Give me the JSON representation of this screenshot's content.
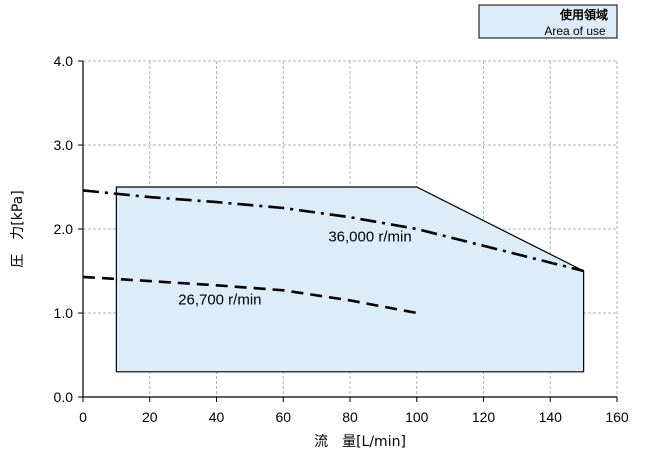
{
  "chart_data": {
    "type": "line",
    "xlabel": "流　量[L/min]",
    "ylabel": "圧　力[kPa]",
    "xlim": [
      0,
      160
    ],
    "ylim": [
      0.0,
      4.0
    ],
    "x_ticks": [
      0,
      20,
      40,
      60,
      80,
      100,
      120,
      140,
      160
    ],
    "y_ticks": [
      0.0,
      1.0,
      2.0,
      3.0,
      4.0
    ],
    "x_tick_labels": [
      "0",
      "20",
      "40",
      "60",
      "80",
      "100",
      "120",
      "140",
      "160"
    ],
    "y_tick_labels": [
      "0.0",
      "1.0",
      "2.0",
      "3.0",
      "4.0"
    ],
    "grid": true,
    "legend": {
      "placement": "top-right",
      "title": "使用領域",
      "subtitle": "Area of use",
      "swatch_color": "#dcecf8"
    },
    "area_of_use": {
      "fill": "#dcecf8",
      "points": [
        [
          10,
          0.3
        ],
        [
          10,
          2.5
        ],
        [
          100,
          2.5
        ],
        [
          150,
          1.5
        ],
        [
          150,
          0.3
        ]
      ]
    },
    "series": [
      {
        "name": "36,000 r/min",
        "style": "dash-dot",
        "x": [
          0,
          20,
          40,
          60,
          80,
          100,
          120,
          140,
          150
        ],
        "y": [
          2.46,
          2.38,
          2.32,
          2.25,
          2.14,
          2.0,
          1.8,
          1.6,
          1.5
        ],
        "label_at": [
          86,
          1.85
        ]
      },
      {
        "name": "26,700 r/min",
        "style": "dashed",
        "x": [
          0,
          20,
          40,
          60,
          80,
          100
        ],
        "y": [
          1.43,
          1.38,
          1.33,
          1.27,
          1.15,
          1.0
        ],
        "label_at": [
          41,
          1.1
        ]
      }
    ]
  }
}
